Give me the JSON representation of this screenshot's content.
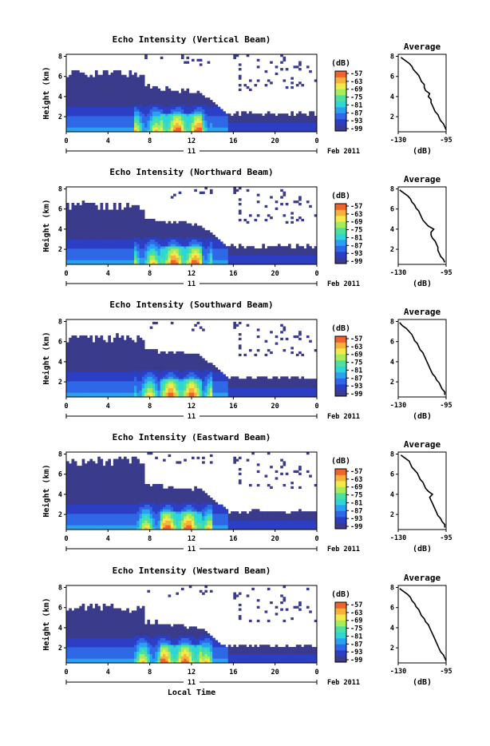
{
  "chart_data": [
    {
      "type": "heatmap",
      "title": "Echo Intensity (Vertical Beam)",
      "ylabel": "Height (km)",
      "xticks": [
        "0",
        "4",
        "8",
        "12",
        "16",
        "20",
        "0"
      ],
      "yticks": [
        "2",
        "4",
        "6",
        "8"
      ],
      "date_day": "11",
      "date_label": "Feb 2011",
      "colorbar_unit": "(dB)",
      "colorbar_ticks": [
        "-57",
        "-63",
        "-69",
        "-75",
        "-81",
        "-87",
        "-93",
        "-99"
      ],
      "ylim": [
        0.5,
        8.2
      ],
      "xlim": [
        0,
        24
      ],
      "profile": {
        "title": "Average",
        "xlabel": "(dB)",
        "xticks": [
          "-130",
          "-95"
        ],
        "yticks": [
          "2",
          "4",
          "6",
          "8"
        ],
        "xlim": [
          -130,
          -95
        ],
        "ylim": [
          0.5,
          8.2
        ],
        "h": [
          0.7,
          1.0,
          1.3,
          1.6,
          1.9,
          2.2,
          2.5,
          2.8,
          3.1,
          3.4,
          3.7,
          4.0,
          4.3,
          4.6,
          4.9,
          5.2,
          5.5,
          5.8,
          6.1,
          6.4,
          6.7,
          7.0,
          7.3,
          7.6,
          7.9
        ],
        "v": [
          -95,
          -96,
          -97,
          -99,
          -100,
          -101,
          -103,
          -104,
          -105,
          -106,
          -106,
          -108,
          -107,
          -110,
          -111,
          -111,
          -113,
          -114,
          -115,
          -117,
          -119,
          -120,
          -122,
          -125,
          -128
        ]
      },
      "field": {
        "top_early": 6.3,
        "top_mid": 5.0,
        "top_late": 2.3,
        "sparse_top": 8.0,
        "sparse_start": 16
      }
    },
    {
      "type": "heatmap",
      "title": "Echo Intensity (Northward Beam)",
      "ylabel": "Height (km)",
      "xticks": [
        "0",
        "4",
        "8",
        "12",
        "16",
        "20",
        "0"
      ],
      "yticks": [
        "2",
        "4",
        "6",
        "8"
      ],
      "date_day": "11",
      "date_label": "Feb 2011",
      "colorbar_unit": "(dB)",
      "colorbar_ticks": [
        "-57",
        "-63",
        "-69",
        "-75",
        "-81",
        "-87",
        "-93",
        "-99"
      ],
      "ylim": [
        0.5,
        8.2
      ],
      "xlim": [
        0,
        24
      ],
      "profile": {
        "title": "Average",
        "xlabel": "(dB)",
        "xticks": [
          "-130",
          "-95"
        ],
        "yticks": [
          "2",
          "4",
          "6",
          "8"
        ],
        "xlim": [
          -130,
          -95
        ],
        "ylim": [
          0.5,
          8.2
        ],
        "h": [
          0.7,
          1.0,
          1.3,
          1.6,
          1.9,
          2.2,
          2.5,
          2.8,
          3.1,
          3.4,
          3.7,
          4.0,
          4.3,
          4.6,
          4.9,
          5.2,
          5.5,
          5.8,
          6.1,
          6.4,
          6.7,
          7.0,
          7.3,
          7.6,
          7.9
        ],
        "v": [
          -96,
          -97,
          -99,
          -100,
          -101,
          -101,
          -102,
          -103,
          -105,
          -106,
          -106,
          -104,
          -108,
          -110,
          -112,
          -113,
          -114,
          -115,
          -117,
          -118,
          -120,
          -121,
          -123,
          -126,
          -129
        ]
      },
      "field": {
        "top_early": 6.3,
        "top_mid": 5.0,
        "top_late": 2.3,
        "sparse_top": 8.0,
        "sparse_start": 16
      }
    },
    {
      "type": "heatmap",
      "title": "Echo Intensity (Southward Beam)",
      "ylabel": "Height (km)",
      "xticks": [
        "0",
        "4",
        "8",
        "12",
        "16",
        "20",
        "0"
      ],
      "yticks": [
        "2",
        "4",
        "6",
        "8"
      ],
      "date_day": "11",
      "date_label": "Feb 2011",
      "colorbar_unit": "(dB)",
      "colorbar_ticks": [
        "-57",
        "-63",
        "-69",
        "-75",
        "-81",
        "-87",
        "-93",
        "-99"
      ],
      "ylim": [
        0.5,
        8.2
      ],
      "xlim": [
        0,
        24
      ],
      "profile": {
        "title": "Average",
        "xlabel": "(dB)",
        "xticks": [
          "-130",
          "-95"
        ],
        "yticks": [
          "2",
          "4",
          "6",
          "8"
        ],
        "xlim": [
          -130,
          -95
        ],
        "ylim": [
          0.5,
          8.2
        ],
        "h": [
          0.7,
          1.0,
          1.3,
          1.6,
          1.9,
          2.2,
          2.5,
          2.8,
          3.1,
          3.4,
          3.7,
          4.0,
          4.3,
          4.6,
          4.9,
          5.2,
          5.5,
          5.8,
          6.1,
          6.4,
          6.7,
          7.0,
          7.3,
          7.6,
          7.9
        ],
        "v": [
          -96,
          -96,
          -98,
          -99,
          -100,
          -102,
          -103,
          -105,
          -106,
          -107,
          -108,
          -109,
          -110,
          -111,
          -112,
          -114,
          -115,
          -116,
          -118,
          -119,
          -120,
          -122,
          -124,
          -127,
          -129
        ]
      },
      "field": {
        "top_early": 6.4,
        "top_mid": 5.2,
        "top_late": 2.4,
        "sparse_top": 8.0,
        "sparse_start": 16
      }
    },
    {
      "type": "heatmap",
      "title": "Echo Intensity (Eastward Beam)",
      "ylabel": "Height (km)",
      "xticks": [
        "0",
        "4",
        "8",
        "12",
        "16",
        "20",
        "0"
      ],
      "yticks": [
        "2",
        "4",
        "6",
        "8"
      ],
      "date_day": "11",
      "date_label": "Feb 2011",
      "colorbar_unit": "(dB)",
      "colorbar_ticks": [
        "-57",
        "-63",
        "-69",
        "-75",
        "-81",
        "-87",
        "-93",
        "-99"
      ],
      "ylim": [
        0.5,
        8.2
      ],
      "xlim": [
        0,
        24
      ],
      "profile": {
        "title": "Average",
        "xlabel": "(dB)",
        "xticks": [
          "-130",
          "-95"
        ],
        "yticks": [
          "2",
          "4",
          "6",
          "8"
        ],
        "xlim": [
          -130,
          -95
        ],
        "ylim": [
          0.5,
          8.2
        ],
        "h": [
          0.7,
          1.0,
          1.3,
          1.6,
          1.9,
          2.2,
          2.5,
          2.8,
          3.1,
          3.4,
          3.7,
          4.0,
          4.3,
          4.6,
          4.9,
          5.2,
          5.5,
          5.8,
          6.1,
          6.4,
          6.7,
          7.0,
          7.3,
          7.6,
          7.9
        ],
        "v": [
          -96,
          -96,
          -98,
          -99,
          -101,
          -102,
          -103,
          -104,
          -105,
          -106,
          -107,
          -105,
          -108,
          -110,
          -111,
          -112,
          -114,
          -115,
          -116,
          -118,
          -120,
          -121,
          -122,
          -125,
          -128
        ]
      },
      "field": {
        "top_early": 7.3,
        "top_mid": 5.1,
        "top_late": 2.3,
        "sparse_top": 8.0,
        "sparse_start": 16
      }
    },
    {
      "type": "heatmap",
      "title": "Echo Intensity (Westward Beam)",
      "ylabel": "Height (km)",
      "xticks": [
        "0",
        "4",
        "8",
        "12",
        "16",
        "20",
        "0"
      ],
      "yticks": [
        "2",
        "4",
        "6",
        "8"
      ],
      "date_day": "11",
      "date_label": "Feb 2011",
      "colorbar_unit": "(dB)",
      "colorbar_ticks": [
        "-57",
        "-63",
        "-69",
        "-75",
        "-81",
        "-87",
        "-93",
        "-99"
      ],
      "ylim": [
        0.5,
        8.2
      ],
      "xlim": [
        0,
        24
      ],
      "xlabel": "Local Time",
      "profile": {
        "title": "Average",
        "xlabel": "(dB)",
        "xticks": [
          "-130",
          "-95"
        ],
        "yticks": [
          "2",
          "4",
          "6",
          "8"
        ],
        "xlim": [
          -130,
          -95
        ],
        "ylim": [
          0.5,
          8.2
        ],
        "h": [
          0.7,
          1.0,
          1.3,
          1.6,
          1.9,
          2.2,
          2.5,
          2.8,
          3.1,
          3.4,
          3.7,
          4.0,
          4.3,
          4.6,
          4.9,
          5.2,
          5.5,
          5.8,
          6.1,
          6.4,
          6.7,
          7.0,
          7.3,
          7.6,
          7.9
        ],
        "v": [
          -95,
          -96,
          -97,
          -99,
          -100,
          -101,
          -102,
          -103,
          -104,
          -105,
          -106,
          -107,
          -108,
          -110,
          -111,
          -113,
          -114,
          -115,
          -117,
          -118,
          -120,
          -121,
          -123,
          -126,
          -129
        ]
      },
      "field": {
        "top_early": 6.0,
        "top_mid": 4.6,
        "top_late": 2.2,
        "sparse_top": 8.0,
        "sparse_start": 16
      }
    }
  ],
  "colors": {
    "scale": [
      "#3b3b8c",
      "#2c3fc4",
      "#2f68e6",
      "#2aa0f0",
      "#2fd6d6",
      "#4fe0a0",
      "#a8ec5c",
      "#f2e94a",
      "#f6b33a",
      "#f0642c"
    ]
  }
}
